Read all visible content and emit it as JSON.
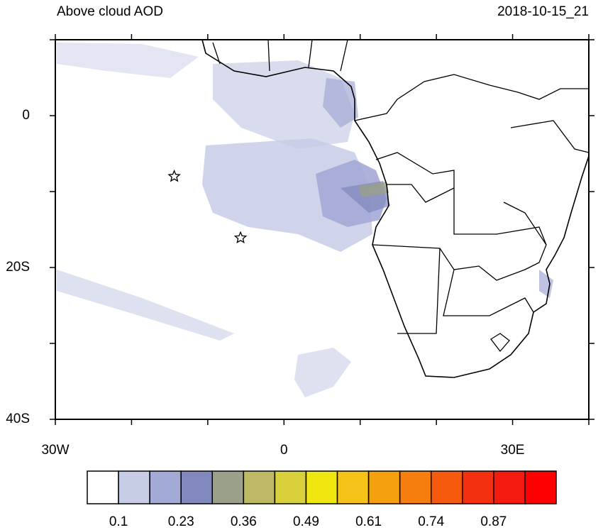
{
  "title": "Above cloud AOD",
  "date": "2018-10-15_21",
  "map": {
    "lon_range": [
      -30,
      40
    ],
    "lat_range": [
      -40,
      10
    ],
    "lon_ticks": [
      -30,
      -20,
      -10,
      0,
      10,
      20,
      30,
      40
    ],
    "lat_ticks": [
      10,
      0,
      -10,
      -20,
      -30,
      -40
    ],
    "lon_labels": [
      {
        "value": -30,
        "label": "30W"
      },
      0,
      {
        "value": 30,
        "label": "30E"
      }
    ],
    "lat_labels": [
      0,
      {
        "value": -20,
        "label": "20S"
      },
      {
        "value": -40,
        "label": "40S"
      }
    ],
    "stars": [
      {
        "lon": -14.4,
        "lat": -8.0
      },
      {
        "lon": -5.7,
        "lat": -16.1
      }
    ]
  },
  "colorbar": {
    "colors": [
      "#ffffff",
      "#c8cde6",
      "#a4aad6",
      "#8088bc",
      "#9aa08a",
      "#bdb964",
      "#d8d13c",
      "#f0e610",
      "#f5c318",
      "#f5a00f",
      "#f57e0f",
      "#f55a0f",
      "#f5300f",
      "#f51a10",
      "#ff0000"
    ],
    "labels": [
      0.1,
      0.23,
      0.36,
      0.49,
      0.61,
      0.74,
      0.87
    ]
  }
}
